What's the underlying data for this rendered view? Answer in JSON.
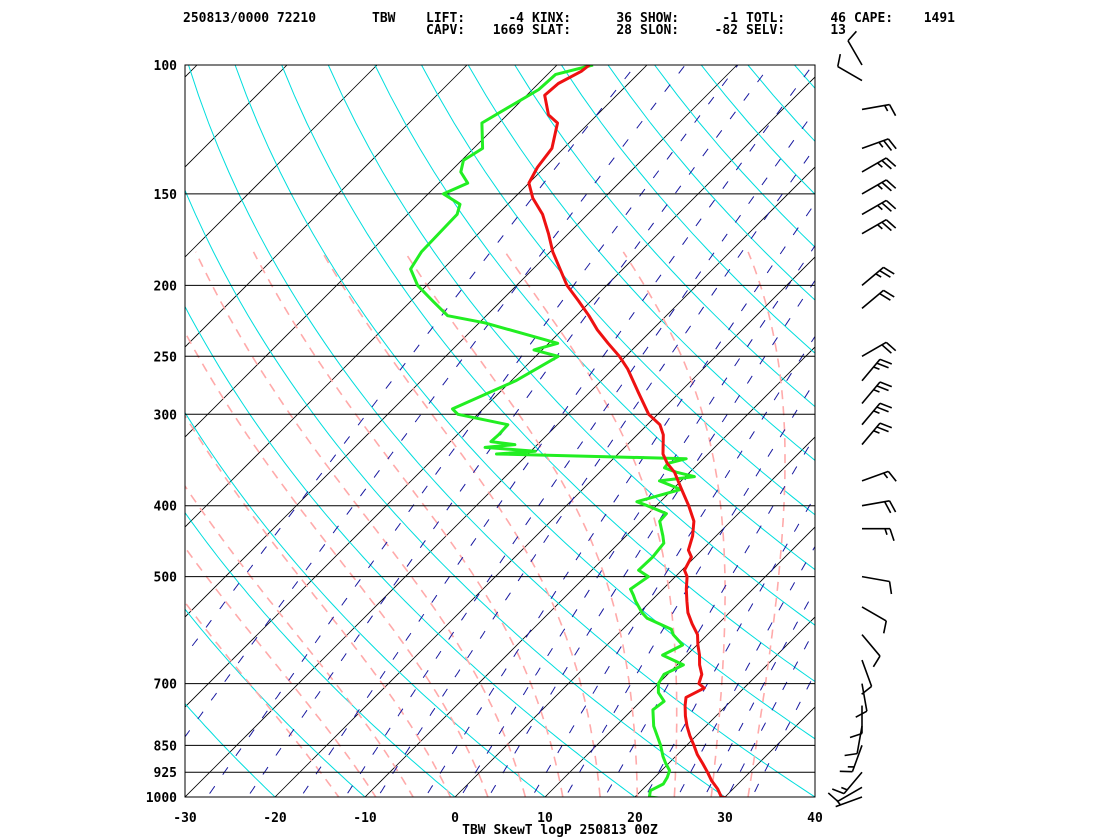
{
  "header": {
    "line1": [
      {
        "text": "250813/0000 72210"
      },
      {
        "text": "TBW"
      },
      {
        "text": "LIFT:"
      },
      {
        "text": "-4"
      },
      {
        "text": "KINX:"
      },
      {
        "text": "36"
      },
      {
        "text": "SHOW:"
      },
      {
        "text": "-1"
      },
      {
        "text": "TOTL:"
      },
      {
        "text": "46"
      },
      {
        "text": "CAPE:"
      },
      {
        "text": "1491"
      }
    ],
    "line2": [
      {
        "text": "CAPV:"
      },
      {
        "text": "1669"
      },
      {
        "text": "SLAT:"
      },
      {
        "text": "28"
      },
      {
        "text": "SLON:"
      },
      {
        "text": "-82"
      },
      {
        "text": "SELV:"
      },
      {
        "text": "13"
      }
    ]
  },
  "footer": {
    "label": "TBW SkewT logP 250813 00Z"
  },
  "colors": {
    "temperature": "#ee1111",
    "dewpoint": "#22ee22",
    "isotherm": "#000000",
    "dry_adiabat": "#00dddd",
    "moist_adiabat": "#ffaaaa",
    "mixing_ratio": "#1a1aa0",
    "isobar": "#000000",
    "wind_barb": "#000000"
  },
  "chart_data": {
    "type": "line",
    "title": "TBW SkewT logP 250813 00Z",
    "x_axis": {
      "ticks": [
        -30,
        -20,
        -10,
        0,
        10,
        20,
        30,
        40
      ],
      "range": [
        -30,
        40
      ],
      "unit": "°C"
    },
    "y_axis": {
      "scale": "log",
      "range": [
        1000,
        100
      ],
      "ticks": [
        100,
        150,
        200,
        250,
        300,
        400,
        500,
        700,
        850,
        925,
        1000
      ]
    },
    "temperature_profile": [
      [
        1010,
        31.9
      ],
      [
        1000,
        29.6
      ],
      [
        975,
        28.3
      ],
      [
        950,
        26.7
      ],
      [
        925,
        25.3
      ],
      [
        900,
        23.8
      ],
      [
        875,
        22.2
      ],
      [
        850,
        20.8
      ],
      [
        825,
        19.3
      ],
      [
        800,
        17.9
      ],
      [
        775,
        16.6
      ],
      [
        750,
        15.4
      ],
      [
        731,
        14.6
      ],
      [
        710,
        15.6
      ],
      [
        700,
        14.5
      ],
      [
        680,
        13.8
      ],
      [
        660,
        12.5
      ],
      [
        640,
        11.4
      ],
      [
        620,
        10.1
      ],
      [
        600,
        8.9
      ],
      [
        580,
        7.1
      ],
      [
        560,
        5.4
      ],
      [
        540,
        4.0
      ],
      [
        520,
        2.6
      ],
      [
        500,
        1.3
      ],
      [
        490,
        0.3
      ],
      [
        470,
        -0.4
      ],
      [
        460,
        -1.5
      ],
      [
        440,
        -2.6
      ],
      [
        420,
        -4.1
      ],
      [
        400,
        -6.4
      ],
      [
        380,
        -9.0
      ],
      [
        360,
        -11.7
      ],
      [
        350,
        -13.5
      ],
      [
        340,
        -15.0
      ],
      [
        320,
        -17.1
      ],
      [
        310,
        -18.6
      ],
      [
        300,
        -21.0
      ],
      [
        280,
        -24.6
      ],
      [
        260,
        -28.4
      ],
      [
        250,
        -30.7
      ],
      [
        240,
        -33.4
      ],
      [
        230,
        -36.1
      ],
      [
        220,
        -38.6
      ],
      [
        210,
        -41.4
      ],
      [
        200,
        -44.4
      ],
      [
        180,
        -49.7
      ],
      [
        170,
        -52.2
      ],
      [
        160,
        -55.0
      ],
      [
        152,
        -57.9
      ],
      [
        145,
        -60.0
      ],
      [
        138,
        -60.8
      ],
      [
        130,
        -61.3
      ],
      [
        120,
        -63.5
      ],
      [
        117,
        -65.4
      ],
      [
        110,
        -68.0
      ],
      [
        106,
        -67.8
      ],
      [
        102,
        -66.6
      ],
      [
        100,
        -66.4
      ]
    ],
    "dewpoint_profile": [
      [
        1010,
        25.2
      ],
      [
        1000,
        21.6
      ],
      [
        980,
        21.0
      ],
      [
        960,
        21.7
      ],
      [
        940,
        21.4
      ],
      [
        920,
        20.9
      ],
      [
        900,
        19.7
      ],
      [
        880,
        18.6
      ],
      [
        850,
        17.1
      ],
      [
        800,
        14.2
      ],
      [
        760,
        12.3
      ],
      [
        740,
        12.6
      ],
      [
        720,
        11.0
      ],
      [
        700,
        10.0
      ],
      [
        680,
        9.6
      ],
      [
        660,
        10.7
      ],
      [
        640,
        7.3
      ],
      [
        620,
        8.4
      ],
      [
        600,
        6.2
      ],
      [
        590,
        5.4
      ],
      [
        570,
        1.5
      ],
      [
        560,
        0.3
      ],
      [
        540,
        -1.7
      ],
      [
        530,
        -2.6
      ],
      [
        520,
        -3.6
      ],
      [
        500,
        -3.0
      ],
      [
        490,
        -4.8
      ],
      [
        470,
        -4.7
      ],
      [
        450,
        -5.0
      ],
      [
        440,
        -5.9
      ],
      [
        420,
        -7.9
      ],
      [
        410,
        -8.0
      ],
      [
        400,
        -11.0
      ],
      [
        395,
        -12.6
      ],
      [
        380,
        -9.1
      ],
      [
        370,
        -12.4
      ],
      [
        365,
        -9.0
      ],
      [
        360,
        -11.5
      ],
      [
        355,
        -13.3
      ],
      [
        350,
        -13.4
      ],
      [
        345,
        -11.9
      ],
      [
        340,
        -33.5
      ],
      [
        337,
        -29.5
      ],
      [
        333,
        -35.5
      ],
      [
        330,
        -32.5
      ],
      [
        327,
        -35.5
      ],
      [
        320,
        -35.4
      ],
      [
        310,
        -35.5
      ],
      [
        300,
        -42.2
      ],
      [
        295,
        -43.4
      ],
      [
        270,
        -39.5
      ],
      [
        250,
        -37.5
      ],
      [
        245,
        -40.9
      ],
      [
        240,
        -39.0
      ],
      [
        225,
        -49.4
      ],
      [
        220,
        -54.3
      ],
      [
        210,
        -57.6
      ],
      [
        200,
        -61.0
      ],
      [
        190,
        -63.6
      ],
      [
        180,
        -64.3
      ],
      [
        160,
        -64.5
      ],
      [
        155,
        -65.3
      ],
      [
        150,
        -68.3
      ],
      [
        145,
        -66.8
      ],
      [
        140,
        -68.8
      ],
      [
        135,
        -69.8
      ],
      [
        130,
        -69.0
      ],
      [
        120,
        -71.9
      ],
      [
        108,
        -69.3
      ],
      [
        103,
        -69.1
      ],
      [
        100,
        -66.0
      ]
    ],
    "wind_barbs": [
      {
        "p": 1000,
        "dir": 250,
        "spd": 5
      },
      {
        "p": 970,
        "dir": 240,
        "spd": 10
      },
      {
        "p": 925,
        "dir": 220,
        "spd": 15
      },
      {
        "p": 850,
        "dir": 200,
        "spd": 15
      },
      {
        "p": 800,
        "dir": 190,
        "spd": 10
      },
      {
        "p": 750,
        "dir": 180,
        "spd": 10
      },
      {
        "p": 700,
        "dir": 170,
        "spd": 10
      },
      {
        "p": 650,
        "dir": 160,
        "spd": 10
      },
      {
        "p": 600,
        "dir": 140,
        "spd": 10
      },
      {
        "p": 550,
        "dir": 120,
        "spd": 10
      },
      {
        "p": 500,
        "dir": 100,
        "spd": 10
      },
      {
        "p": 430,
        "dir": 90,
        "spd": 15
      },
      {
        "p": 400,
        "dir": 80,
        "spd": 20
      },
      {
        "p": 370,
        "dir": 70,
        "spd": 15
      },
      {
        "p": 330,
        "dir": 40,
        "spd": 25
      },
      {
        "p": 310,
        "dir": 40,
        "spd": 25
      },
      {
        "p": 290,
        "dir": 40,
        "spd": 25
      },
      {
        "p": 270,
        "dir": 40,
        "spd": 25
      },
      {
        "p": 250,
        "dir": 60,
        "spd": 20
      },
      {
        "p": 215,
        "dir": 50,
        "spd": 20
      },
      {
        "p": 200,
        "dir": 50,
        "spd": 25
      },
      {
        "p": 170,
        "dir": 60,
        "spd": 25
      },
      {
        "p": 160,
        "dir": 60,
        "spd": 25
      },
      {
        "p": 150,
        "dir": 60,
        "spd": 25
      },
      {
        "p": 140,
        "dir": 60,
        "spd": 25
      },
      {
        "p": 130,
        "dir": 70,
        "spd": 25
      },
      {
        "p": 115,
        "dir": 80,
        "spd": 15
      },
      {
        "p": 105,
        "dir": 300,
        "spd": 10
      },
      {
        "p": 100,
        "dir": 330,
        "spd": 10
      }
    ]
  }
}
